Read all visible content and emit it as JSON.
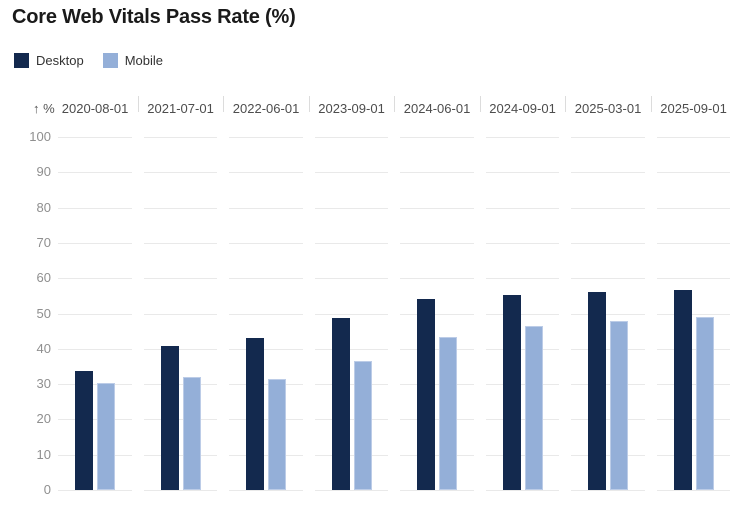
{
  "chart_data": {
    "type": "bar",
    "title": "Core Web Vitals Pass Rate (%)",
    "categories": [
      "2020-08-01",
      "2021-07-01",
      "2022-06-01",
      "2023-09-01",
      "2024-06-01",
      "2024-09-01",
      "2025-03-01",
      "2025-09-01"
    ],
    "series": [
      {
        "name": "Desktop",
        "color": "#13294e",
        "values": [
          33.6,
          40.8,
          43.2,
          48.8,
          54.0,
          55.3,
          56.2,
          56.7
        ]
      },
      {
        "name": "Mobile",
        "color": "#94afd8",
        "values": [
          30.4,
          32.0,
          31.4,
          36.6,
          43.4,
          46.6,
          47.8,
          49.0
        ]
      }
    ],
    "xlabel": "",
    "ylabel": "%",
    "ylim": [
      0,
      100
    ],
    "grid": true,
    "legend_position": "top-left",
    "category_labels_position": "top"
  },
  "axis": {
    "unit_label": "↑ %",
    "ticks": [
      0,
      10,
      20,
      30,
      40,
      50,
      60,
      70,
      80,
      90,
      100
    ]
  },
  "colors": {
    "desktop": "#13294e",
    "mobile": "#94afd8",
    "gridline": "#e9e9e9",
    "tick_text": "#8f8f8f",
    "category_text": "#4d4d4d",
    "title_text": "#1a1a1a"
  }
}
